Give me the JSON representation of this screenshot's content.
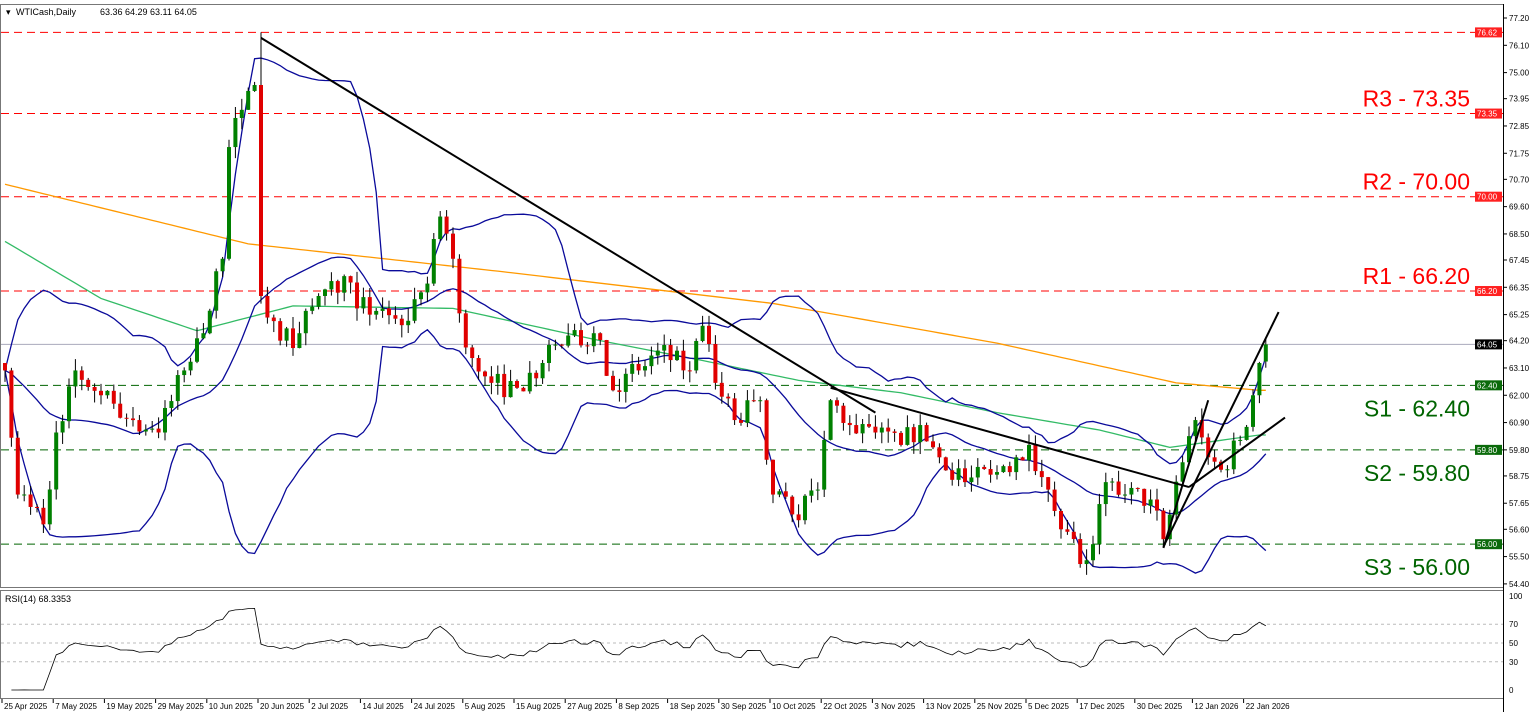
{
  "header": {
    "symbol": "WTICash,Daily",
    "ohlc": "63.36 64.29 63.11 64.05"
  },
  "rsi_header": {
    "label": "RSI(14) 68.3353"
  },
  "colors": {
    "bull": "#008000",
    "bear": "#e00000",
    "resistance": "#ff0000",
    "support": "#006400",
    "ma_long": "#ff9900",
    "ma_mid": "#33bb66",
    "bands": "#0a0a9a",
    "trendline": "#000000"
  },
  "chart_data": {
    "type": "candlestick",
    "title": "WTICash,Daily",
    "ylim": [
      54.4,
      77.2
    ],
    "y_ticks": [
      "77.20",
      "76.10",
      "75.00",
      "73.95",
      "72.85",
      "71.75",
      "70.70",
      "69.60",
      "68.50",
      "67.45",
      "66.35",
      "65.25",
      "64.20",
      "63.10",
      "62.00",
      "60.90",
      "59.80",
      "58.75",
      "57.65",
      "56.60",
      "55.50",
      "54.40"
    ],
    "x_ticks": [
      {
        "date": "2025-04-25",
        "label": "25 Apr 2025"
      },
      {
        "date": "2025-05-07",
        "label": "7 May 2025"
      },
      {
        "date": "2025-05-19",
        "label": "19 May 2025"
      },
      {
        "date": "2025-05-29",
        "label": "29 May 2025"
      },
      {
        "date": "2025-06-10",
        "label": "10 Jun 2025"
      },
      {
        "date": "2025-06-20",
        "label": "20 Jun 2025"
      },
      {
        "date": "2025-07-02",
        "label": "2 Jul 2025"
      },
      {
        "date": "2025-07-14",
        "label": "14 Jul 2025"
      },
      {
        "date": "2025-07-24",
        "label": "24 Jul 2025"
      },
      {
        "date": "2025-08-05",
        "label": "5 Aug 2025"
      },
      {
        "date": "2025-08-15",
        "label": "15 Aug 2025"
      },
      {
        "date": "2025-08-27",
        "label": "27 Aug 2025"
      },
      {
        "date": "2025-09-08",
        "label": "8 Sep 2025"
      },
      {
        "date": "2025-09-18",
        "label": "18 Sep 2025"
      },
      {
        "date": "2025-09-30",
        "label": "30 Sep 2025"
      },
      {
        "date": "2025-10-10",
        "label": "10 Oct 2025"
      },
      {
        "date": "2025-10-22",
        "label": "22 Oct 2025"
      },
      {
        "date": "2025-11-03",
        "label": "3 Nov 2025"
      },
      {
        "date": "2025-11-13",
        "label": "13 Nov 2025"
      },
      {
        "date": "2025-11-25",
        "label": "25 Nov 2025"
      },
      {
        "date": "2025-12-05",
        "label": "5 Dec 2025"
      },
      {
        "date": "2025-12-17",
        "label": "17 Dec 2025"
      },
      {
        "date": "2025-12-30",
        "label": "30 Dec 2025"
      },
      {
        "date": "2026-01-12",
        "label": "12 Jan 2026"
      },
      {
        "date": "2026-01-22",
        "label": "22 Jan 2026"
      }
    ],
    "close_path": [
      [
        "2025-04-25",
        63.0
      ],
      [
        "2025-04-29",
        58.0
      ],
      [
        "2025-05-01",
        57.5
      ],
      [
        "2025-05-05",
        56.8
      ],
      [
        "2025-05-07",
        60.5
      ],
      [
        "2025-05-12",
        63.0
      ],
      [
        "2025-05-16",
        62.0
      ],
      [
        "2025-05-23",
        61.0
      ],
      [
        "2025-05-29",
        60.5
      ],
      [
        "2025-06-04",
        63.0
      ],
      [
        "2025-06-09",
        64.5
      ],
      [
        "2025-06-12",
        67.5
      ],
      [
        "2025-06-13",
        72.0
      ],
      [
        "2025-06-17",
        73.5
      ],
      [
        "2025-06-19",
        74.5
      ],
      [
        "2025-06-20",
        66.0
      ],
      [
        "2025-06-25",
        64.2
      ],
      [
        "2025-06-30",
        64.5
      ],
      [
        "2025-07-03",
        66.0
      ],
      [
        "2025-07-09",
        66.8
      ],
      [
        "2025-07-11",
        65.5
      ],
      [
        "2025-07-17",
        65.5
      ],
      [
        "2025-07-23",
        65.0
      ],
      [
        "2025-07-28",
        66.5
      ],
      [
        "2025-07-30",
        69.2
      ],
      [
        "2025-08-01",
        67.5
      ],
      [
        "2025-08-04",
        65.3
      ],
      [
        "2025-08-06",
        63.5
      ],
      [
        "2025-08-11",
        62.5
      ],
      [
        "2025-08-15",
        62.3
      ],
      [
        "2025-08-21",
        63.3
      ],
      [
        "2025-08-26",
        64.0
      ],
      [
        "2025-09-02",
        64.5
      ],
      [
        "2025-09-05",
        62.2
      ],
      [
        "2025-09-11",
        63.0
      ],
      [
        "2025-09-16",
        63.8
      ],
      [
        "2025-09-23",
        63.0
      ],
      [
        "2025-09-25",
        64.8
      ],
      [
        "2025-09-29",
        62.5
      ],
      [
        "2025-10-02",
        61.0
      ],
      [
        "2025-10-08",
        61.8
      ],
      [
        "2025-10-10",
        58.0
      ],
      [
        "2025-10-15",
        57.2
      ],
      [
        "2025-10-21",
        58.2
      ],
      [
        "2025-10-23",
        61.8
      ],
      [
        "2025-10-28",
        60.8
      ],
      [
        "2025-11-03",
        60.5
      ],
      [
        "2025-11-07",
        60.0
      ],
      [
        "2025-11-12",
        60.8
      ],
      [
        "2025-11-17",
        59.5
      ],
      [
        "2025-11-21",
        58.5
      ],
      [
        "2025-11-27",
        58.8
      ],
      [
        "2025-12-03",
        59.5
      ],
      [
        "2025-12-05",
        60.0
      ],
      [
        "2025-12-10",
        58.2
      ],
      [
        "2025-12-15",
        56.5
      ],
      [
        "2025-12-17",
        55.2
      ],
      [
        "2025-12-19",
        56.0
      ],
      [
        "2025-12-23",
        58.5
      ],
      [
        "2025-12-26",
        58.0
      ],
      [
        "2026-01-01",
        57.8
      ],
      [
        "2026-01-05",
        56.2
      ],
      [
        "2026-01-08",
        59.3
      ],
      [
        "2026-01-12",
        61.0
      ],
      [
        "2026-01-14",
        59.5
      ],
      [
        "2026-01-16",
        59.0
      ],
      [
        "2026-01-21",
        60.2
      ],
      [
        "2026-01-23",
        62.0
      ],
      [
        "2026-01-26",
        63.3
      ],
      [
        "2026-01-27",
        64.05
      ]
    ],
    "notable_highs": [
      [
        "2025-06-20",
        76.62
      ]
    ],
    "last_bar": {
      "open": 63.36,
      "high": 64.29,
      "low": 63.11,
      "close": 64.05
    },
    "current_price": "64.05",
    "ma_long": [
      [
        "2025-04-25",
        70.5
      ],
      [
        "2025-06-18",
        68.1
      ],
      [
        "2025-08-12",
        67.0
      ],
      [
        "2025-10-10",
        65.7
      ],
      [
        "2025-11-28",
        64.1
      ],
      [
        "2026-01-07",
        62.5
      ],
      [
        "2026-01-26",
        62.2
      ]
    ],
    "ma_mid": [
      [
        "2025-04-25",
        68.2
      ],
      [
        "2025-05-16",
        65.9
      ],
      [
        "2025-06-06",
        64.6
      ],
      [
        "2025-06-27",
        65.6
      ],
      [
        "2025-08-01",
        65.5
      ],
      [
        "2025-09-03",
        64.2
      ],
      [
        "2025-09-25",
        63.4
      ],
      [
        "2025-10-16",
        62.6
      ],
      [
        "2025-11-07",
        62.1
      ],
      [
        "2025-11-28",
        61.3
      ],
      [
        "2025-12-22",
        60.6
      ],
      [
        "2026-01-06",
        59.9
      ],
      [
        "2026-01-26",
        60.4
      ]
    ],
    "levels": [
      {
        "label": "R3 - 73.35",
        "value": 73.35,
        "tag": "73.35",
        "kind": "resistance"
      },
      {
        "label": "R2 - 70.00",
        "value": 70.0,
        "tag": "70.00",
        "kind": "resistance"
      },
      {
        "label": "R1 - 66.20",
        "value": 66.2,
        "tag": "66.20",
        "kind": "resistance"
      },
      {
        "label": "S1 - 62.40",
        "value": 62.4,
        "tag": "62.40",
        "kind": "support"
      },
      {
        "label": "S2 - 59.80",
        "value": 59.8,
        "tag": "59.80",
        "kind": "support"
      },
      {
        "label": "S3 - 56.00",
        "value": 56.0,
        "tag": "56.00",
        "kind": "support"
      },
      {
        "label": "",
        "value": 76.62,
        "tag": "76.62",
        "kind": "resistance"
      }
    ],
    "trendlines": [
      [
        [
          "2025-06-20",
          76.4
        ],
        [
          "2025-11-03",
          61.3
        ]
      ],
      [
        [
          "2025-10-23",
          62.3
        ],
        [
          "2026-01-09",
          58.3
        ]
      ],
      [
        [
          "2026-01-05",
          55.85
        ],
        [
          "2026-01-14",
          61.8
        ]
      ],
      [
        [
          "2026-01-05",
          55.9
        ],
        [
          "2026-01-29",
          65.35
        ]
      ],
      [
        [
          "2026-01-09",
          58.3
        ],
        [
          "2026-01-30",
          61.1
        ]
      ]
    ],
    "rsi": {
      "period": 14,
      "value": 68.3353,
      "ylim": [
        0,
        100
      ],
      "ticks": [
        "100",
        "70",
        "50",
        "30",
        "0"
      ],
      "levels": [
        70,
        50,
        30
      ]
    }
  }
}
